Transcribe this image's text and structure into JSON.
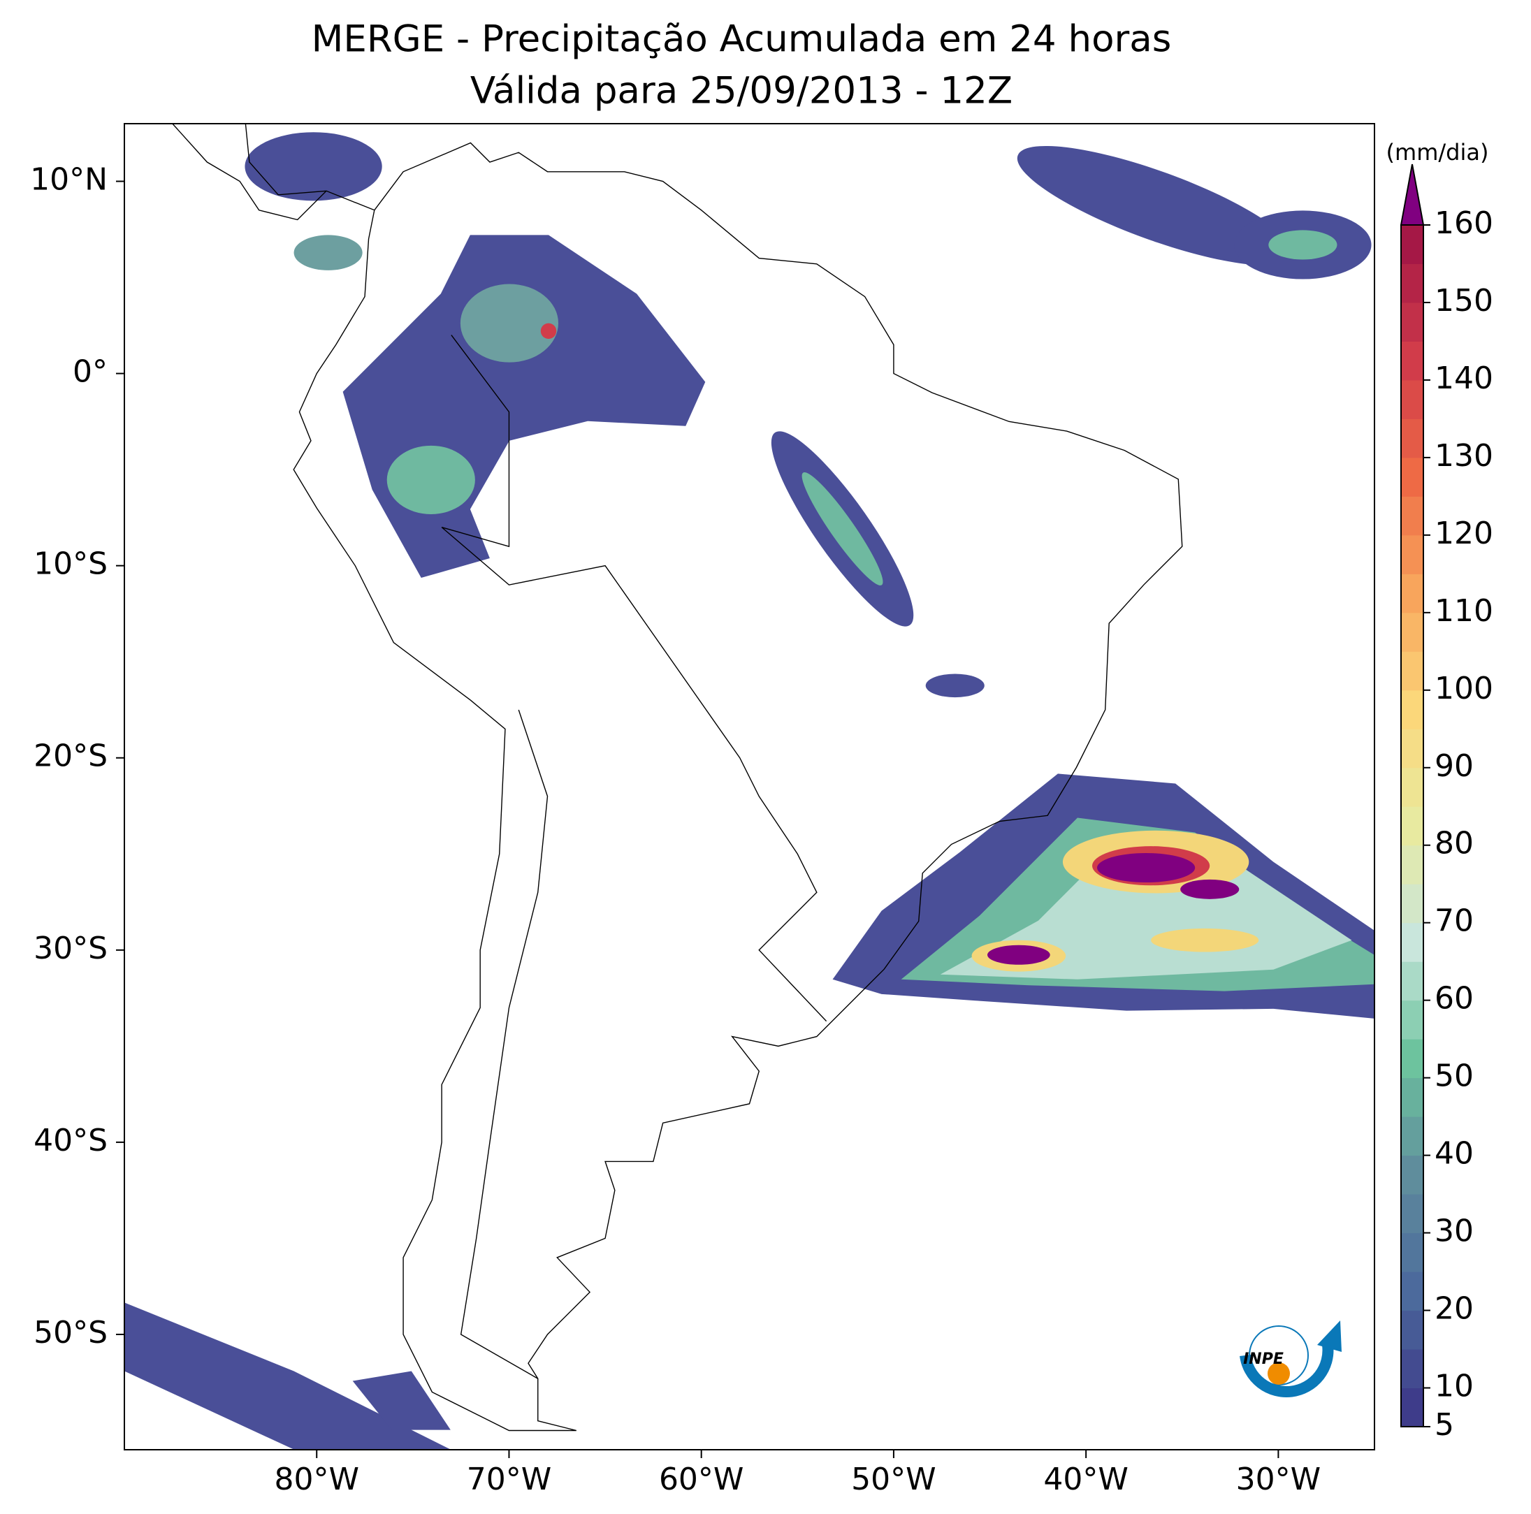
{
  "chart_data": {
    "type": "map",
    "title": "MERGE - Precipitação Acumulada em 24 horas",
    "subtitle": "Válida para 25/09/2013 - 12Z",
    "xlim": [
      -90,
      -25
    ],
    "ylim": [
      -56,
      13
    ],
    "xticks": [
      {
        "value": -80,
        "label": "80°W"
      },
      {
        "value": -70,
        "label": "70°W"
      },
      {
        "value": -60,
        "label": "60°W"
      },
      {
        "value": -50,
        "label": "50°W"
      },
      {
        "value": -40,
        "label": "40°W"
      },
      {
        "value": -30,
        "label": "30°W"
      }
    ],
    "yticks": [
      {
        "value": 10,
        "label": "10°N"
      },
      {
        "value": 0,
        "label": "0°"
      },
      {
        "value": -10,
        "label": "10°S"
      },
      {
        "value": -20,
        "label": "20°S"
      },
      {
        "value": -30,
        "label": "30°S"
      },
      {
        "value": -40,
        "label": "40°S"
      },
      {
        "value": -50,
        "label": "50°S"
      }
    ],
    "colorbar": {
      "label": "(mm/dia)",
      "lim": [
        5,
        160
      ],
      "step": 5,
      "ticks": [
        5,
        10,
        20,
        30,
        40,
        50,
        60,
        70,
        80,
        90,
        100,
        110,
        120,
        130,
        140,
        150,
        160
      ],
      "colors": [
        "#3e3c8a",
        "#4c6a9c",
        "#5f8d9c",
        "#6dc39e",
        "#c9e6dc",
        "#e8eaa0",
        "#fbd77a",
        "#f8a55c",
        "#ee6a45",
        "#d13c4a",
        "#a51846"
      ],
      "extend_color": "#800080"
    },
    "logo": "INPE"
  }
}
